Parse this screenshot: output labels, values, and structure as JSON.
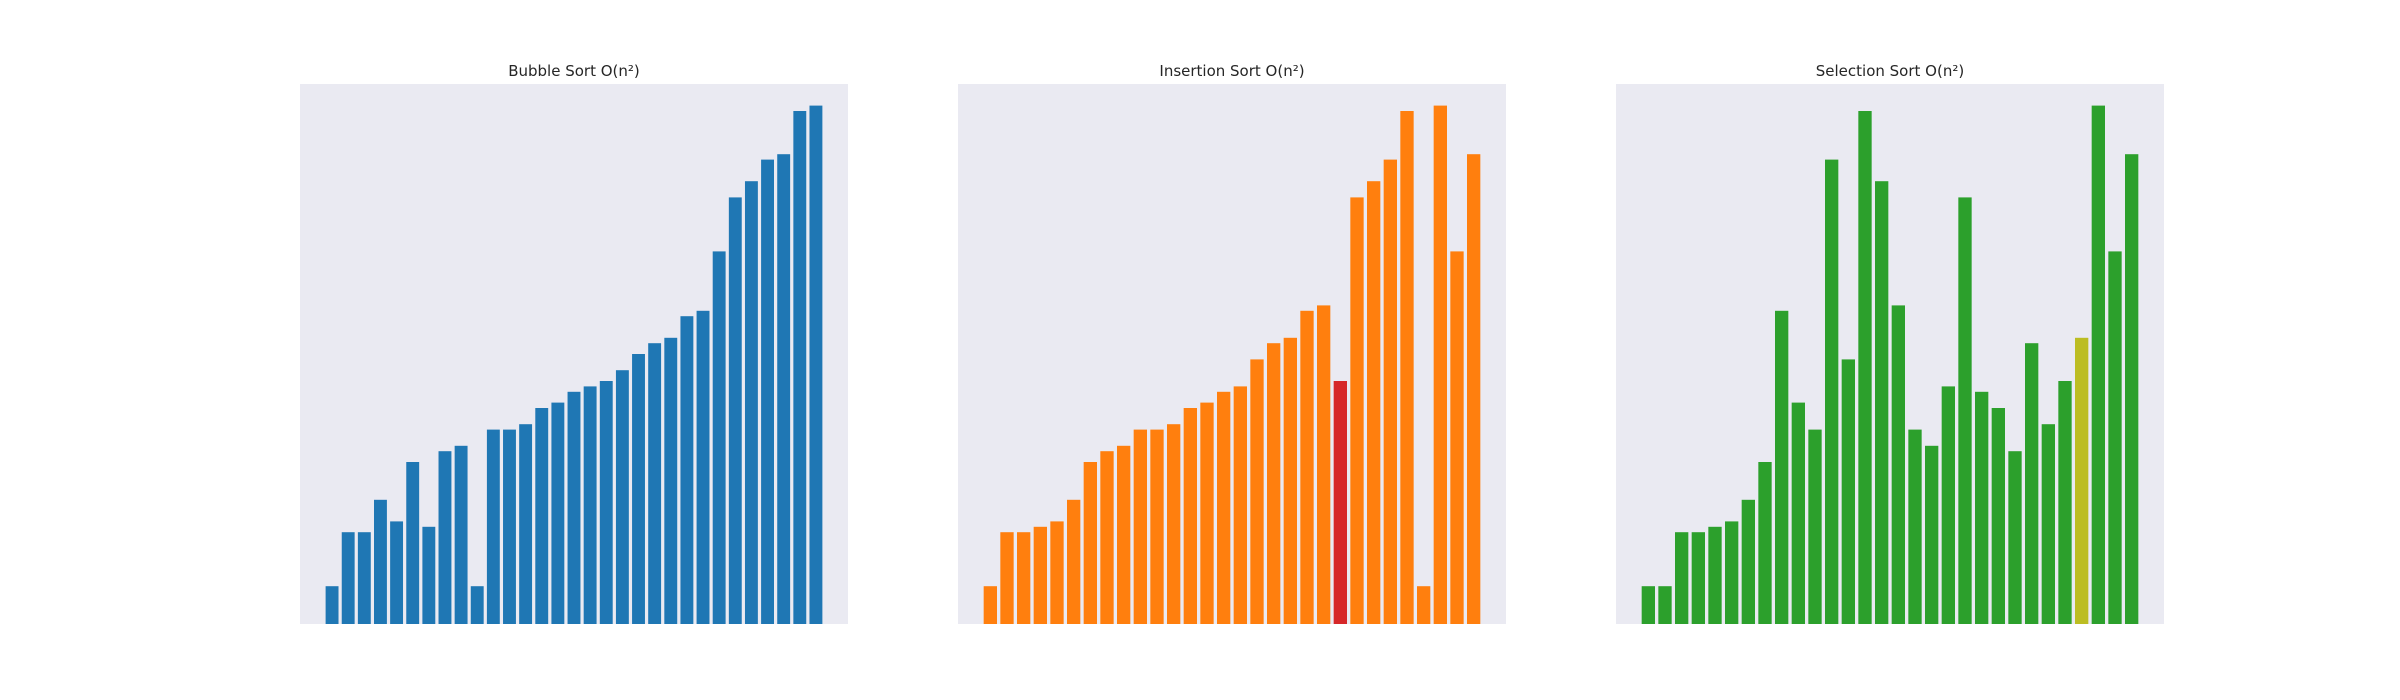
{
  "chart_data": [
    {
      "type": "bar",
      "title": "Bubble Sort O(n²)",
      "xlabel": "",
      "ylabel": "",
      "grid": false,
      "ylim": [
        0,
        100
      ],
      "color": "#1f77b4",
      "values": [
        7,
        17,
        17,
        23,
        19,
        30,
        18,
        32,
        33,
        7,
        36,
        36,
        37,
        40,
        41,
        43,
        44,
        45,
        47,
        50,
        52,
        53,
        57,
        58,
        69,
        79,
        82,
        86,
        87,
        95,
        96
      ],
      "highlights": []
    },
    {
      "type": "bar",
      "title": "Insertion Sort O(n²)",
      "xlabel": "",
      "ylabel": "",
      "grid": false,
      "ylim": [
        0,
        100
      ],
      "color": "#ff7f0e",
      "values": [
        7,
        17,
        17,
        18,
        19,
        23,
        30,
        32,
        33,
        36,
        36,
        37,
        40,
        41,
        43,
        44,
        49,
        52,
        53,
        58,
        59,
        45,
        79,
        82,
        86,
        95,
        7,
        96,
        69,
        87
      ],
      "highlights": [
        {
          "index": 21,
          "color": "#d62728"
        }
      ]
    },
    {
      "type": "bar",
      "title": "Selection Sort O(n²)",
      "xlabel": "",
      "ylabel": "",
      "grid": false,
      "ylim": [
        0,
        100
      ],
      "color": "#2ca02c",
      "values": [
        7,
        7,
        17,
        17,
        18,
        19,
        23,
        30,
        58,
        41,
        36,
        86,
        49,
        95,
        82,
        59,
        36,
        33,
        44,
        79,
        43,
        40,
        32,
        52,
        37,
        45,
        53,
        96,
        69,
        87
      ],
      "highlights": [
        {
          "index": 26,
          "color": "#bcbd22"
        }
      ]
    }
  ]
}
